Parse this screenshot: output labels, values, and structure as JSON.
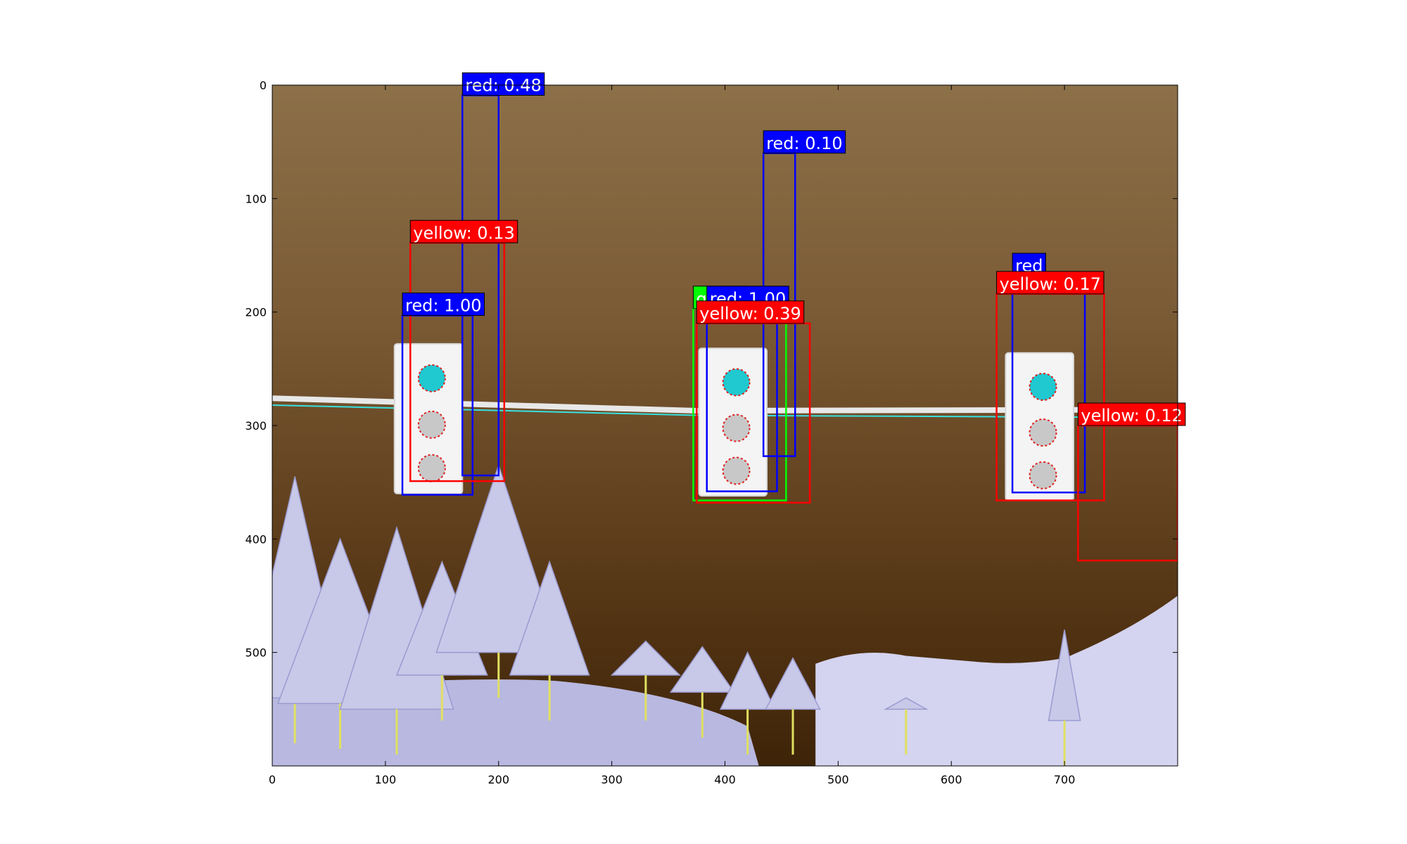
{
  "chart_data": {
    "type": "image-detections",
    "title": "",
    "xlabel": "",
    "ylabel": "",
    "xlim": [
      0,
      800
    ],
    "ylim": [
      600,
      0
    ],
    "xticks": [
      0,
      100,
      200,
      300,
      400,
      500,
      600,
      700
    ],
    "yticks": [
      0,
      100,
      200,
      300,
      400,
      500
    ],
    "xtick_labels": [
      "0",
      "100",
      "200",
      "300",
      "400",
      "500",
      "600",
      "700"
    ],
    "ytick_labels": [
      "0",
      "100",
      "200",
      "300",
      "400",
      "500"
    ],
    "grid": false,
    "legend": "none",
    "image": {
      "sky_colors": [
        "#8c7048",
        "#7a5a34",
        "#5a3a18",
        "#3e2408"
      ],
      "snow_color": "#d4d4f0",
      "trees_color": "#c8c8e8",
      "wire_color": "#e8e8e8",
      "housing_color": "#f4f4f4",
      "lit_lamp_color": "#20c8d0",
      "unlit_lamp_color": "#c8c8c8",
      "traffic_lights": [
        {
          "x0": 108,
          "y0": 228,
          "x1": 168,
          "y1": 360
        },
        {
          "x0": 377,
          "y0": 232,
          "x1": 437,
          "y1": 362
        },
        {
          "x0": 648,
          "y0": 236,
          "x1": 708,
          "y1": 366
        }
      ]
    },
    "class_colors": {
      "red": "#0000ff",
      "yellow": "#ff0000",
      "green": "#00ff00"
    },
    "detections": [
      {
        "label": "red: 1.00",
        "class": "red",
        "x0": 115,
        "y0": 203,
        "x1": 177,
        "y1": 361
      },
      {
        "label": "red: 0.48",
        "class": "red",
        "x0": 168,
        "y0": 9,
        "x1": 200,
        "y1": 344
      },
      {
        "label": "yellow: 0.13",
        "class": "yellow",
        "x0": 122,
        "y0": 139,
        "x1": 205,
        "y1": 349
      },
      {
        "label": "green",
        "class": "green",
        "x0": 372,
        "y0": 197,
        "x1": 454,
        "y1": 366
      },
      {
        "label": "red: 1.00",
        "class": "red",
        "x0": 384,
        "y0": 197,
        "x1": 446,
        "y1": 358
      },
      {
        "label": "red: 0.10",
        "class": "red",
        "x0": 434,
        "y0": 60,
        "x1": 462,
        "y1": 327
      },
      {
        "label": "yellow: 0.39",
        "class": "yellow",
        "x0": 375,
        "y0": 210,
        "x1": 475,
        "y1": 368
      },
      {
        "label": "red",
        "class": "red",
        "x0": 654,
        "y0": 168,
        "x1": 718,
        "y1": 359
      },
      {
        "label": "yellow: 0.17",
        "class": "yellow",
        "x0": 640,
        "y0": 184,
        "x1": 735,
        "y1": 366
      },
      {
        "label": "yellow: 0.12",
        "class": "yellow",
        "x0": 712,
        "y0": 300,
        "x1": 800,
        "y1": 419
      }
    ]
  }
}
